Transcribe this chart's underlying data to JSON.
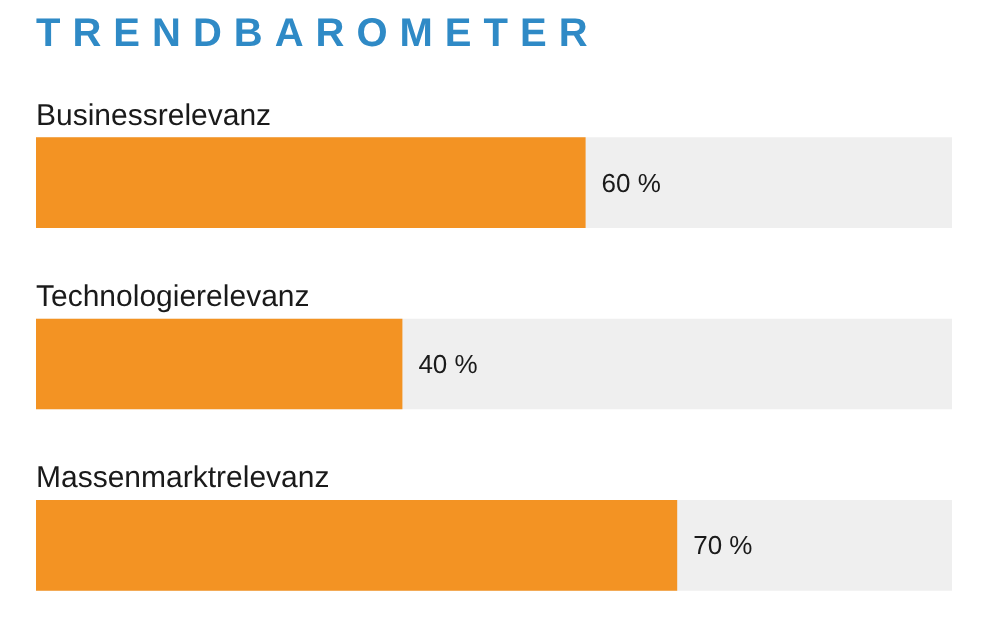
{
  "chart_data": {
    "type": "bar",
    "orientation": "horizontal",
    "title": "TRENDBAROMETER",
    "categories": [
      "Businessrelevanz",
      "Technologierelevanz",
      "Massenmarktrelevanz"
    ],
    "values": [
      60,
      40,
      70
    ],
    "value_labels": [
      "60 %",
      "40 %",
      "70 %"
    ],
    "color": "#f39323",
    "xlim": [
      0,
      100
    ],
    "tick_labels": false
  }
}
